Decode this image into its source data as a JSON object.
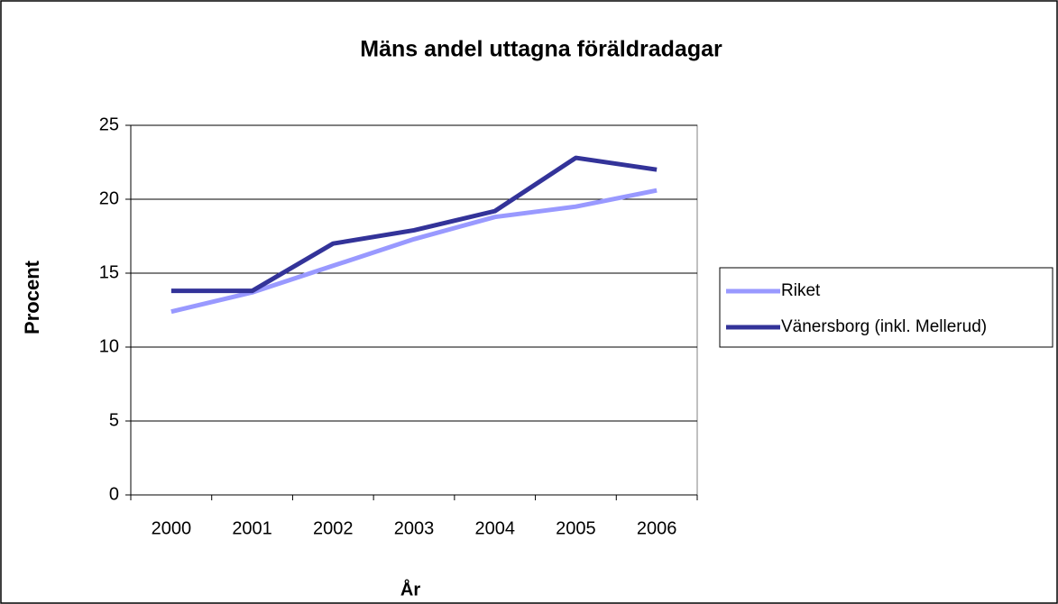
{
  "chart_data": {
    "type": "line",
    "title": "Mäns andel uttagna föräldradagar",
    "x_label": "År",
    "y_label": "Procent",
    "categories": [
      "2000",
      "2001",
      "2002",
      "2003",
      "2004",
      "2005",
      "2006"
    ],
    "series": [
      {
        "name": "Riket",
        "color": "#9999ff",
        "values": [
          12.4,
          13.7,
          15.5,
          17.3,
          18.8,
          19.5,
          20.6
        ]
      },
      {
        "name": "Vänersborg (inkl. Mellerud)",
        "color": "#333399",
        "values": [
          13.8,
          13.8,
          17.0,
          17.9,
          19.2,
          22.8,
          22.0
        ]
      }
    ],
    "ylim": [
      0,
      25
    ],
    "yticks": [
      0,
      5,
      10,
      15,
      20,
      25
    ],
    "grid": true,
    "legend": "right"
  }
}
